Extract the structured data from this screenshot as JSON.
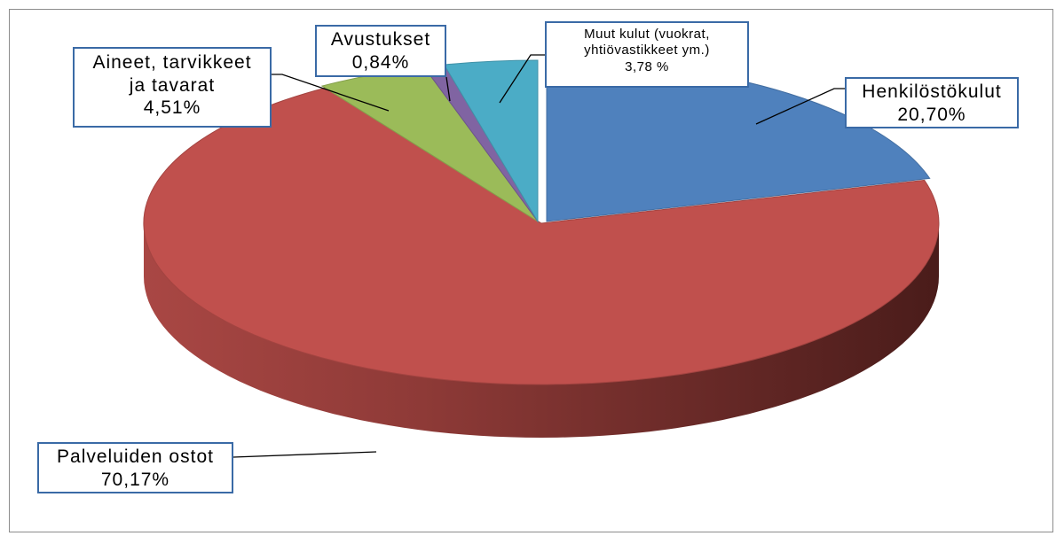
{
  "chart_data": {
    "type": "pie",
    "style": "3d-exploded",
    "slices": [
      {
        "label_lines": [
          "Henkilöstökulut"
        ],
        "value_text": "20,70%",
        "value": 20.7,
        "color": "#4f81bd"
      },
      {
        "label_lines": [
          "Palveluiden ostot"
        ],
        "value_text": "70,17%",
        "value": 70.17,
        "color": "#c0504d"
      },
      {
        "label_lines": [
          "Aineet, tarvikkeet",
          "ja tavarat"
        ],
        "value_text": "4,51%",
        "value": 4.51,
        "color": "#9bbb59"
      },
      {
        "label_lines": [
          "Avustukset"
        ],
        "value_text": "0,84%",
        "value": 0.84,
        "color": "#8064a2"
      },
      {
        "label_lines": [
          "Muut kulut (vuokrat,",
          "yhtiövastikkeet  ym.)"
        ],
        "value_text": "3,78 %",
        "value": 3.78,
        "color": "#4bacc6"
      }
    ],
    "legend": "none",
    "data_labels": "callouts"
  }
}
